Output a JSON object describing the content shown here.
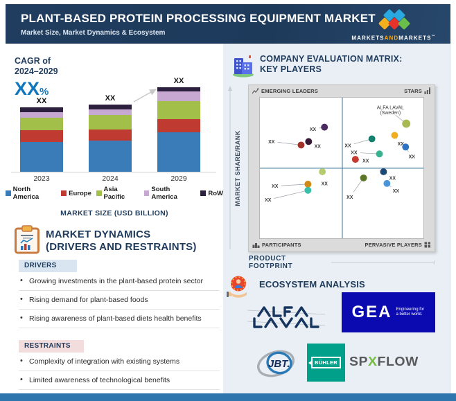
{
  "header": {
    "title": "PLANT-BASED PROTEIN PROCESSING EQUIPMENT MARKET",
    "subtitle": "Market Size, Market Dynamics & Ecosystem",
    "logo": {
      "part1": "MARKETS",
      "and": "AND",
      "part2": "MARKETS",
      "tm": "™"
    }
  },
  "cagr": {
    "line1": "CAGR of",
    "line2": "2024–2029",
    "value": "XX",
    "percent": "%"
  },
  "market_size_label": "MARKET SIZE (USD BILLION)",
  "chart_data": [
    {
      "type": "bar",
      "stacked": true,
      "title": "MARKET SIZE (USD BILLION)",
      "categories": [
        "2023",
        "2024",
        "2029"
      ],
      "series": [
        {
          "name": "North America",
          "color": "#3a7cb8",
          "values": [
            43,
            45,
            57
          ]
        },
        {
          "name": "Europe",
          "color": "#bf3b32",
          "values": [
            17,
            16,
            19
          ]
        },
        {
          "name": "Asia Pacific",
          "color": "#a2bf4a",
          "values": [
            18,
            21,
            26
          ]
        },
        {
          "name": "South America",
          "color": "#c7a8d3",
          "values": [
            8,
            8,
            14
          ]
        },
        {
          "name": "RoW",
          "color": "#2d1f3e",
          "values": [
            7,
            7,
            6
          ]
        }
      ],
      "value_labels": [
        "XX",
        "XX",
        "XX"
      ],
      "note": "actual values masked as XX in source; series values are proportional drawn heights",
      "growth_arrow": {
        "from_category": "2024",
        "to_category": "2029"
      },
      "legend_position": "bottom",
      "grid": false
    },
    {
      "type": "scatter",
      "title": "COMPANY EVALUATION MATRIX: KEY PLAYERS",
      "xlabel": "PRODUCT FOOTPRINT",
      "ylabel": "MARKET SHARE/RANK",
      "x_range": [
        0,
        100
      ],
      "y_range": [
        0,
        100
      ],
      "y_origin": "top",
      "divider_x": 50.4,
      "divider_y": 50.2,
      "points": [
        {
          "label": "XX",
          "x": 39.5,
          "y": 21.0,
          "lx": 32.4,
          "ly": 22.4,
          "color": "#4a2b5e"
        },
        {
          "label": "XX",
          "x": 29.8,
          "y": 31.2,
          "lx": 35.3,
          "ly": 34.6,
          "color": "#381935"
        },
        {
          "label": "XX",
          "x": 25.2,
          "y": 33.7,
          "lx": 7.1,
          "ly": 31.2,
          "color": "#a03028"
        },
        {
          "label": "XX",
          "x": 68.5,
          "y": 29.3,
          "lx": 53.8,
          "ly": 34.1,
          "color": "#177f6e"
        },
        {
          "label": "XX",
          "x": 82.4,
          "y": 26.8,
          "lx": 86.1,
          "ly": 32.7,
          "color": "#f0ad1e"
        },
        {
          "label": "XX",
          "x": 73.1,
          "y": 40.0,
          "lx": 57.6,
          "ly": 39.0,
          "color": "#36b28e"
        },
        {
          "label": "XX",
          "x": 58.4,
          "y": 43.9,
          "lx": 64.7,
          "ly": 44.9,
          "color": "#c23b2e"
        },
        {
          "label": "XX",
          "x": 89.1,
          "y": 35.1,
          "lx": 92.9,
          "ly": 42.0,
          "color": "#2f73c4"
        },
        {
          "label": "ALFA LAVAL|(Sweden)",
          "x": 89.5,
          "y": 18.5,
          "lx": 79.8,
          "ly": 9.5,
          "color": "#a8b953",
          "r": 6
        },
        {
          "label": "XX",
          "x": 38.2,
          "y": 52.7,
          "lx": 39.5,
          "ly": 61.0,
          "color": "#b4cc6e",
          "connector": false
        },
        {
          "label": "XX",
          "x": 29.4,
          "y": 61.5,
          "lx": 9.2,
          "ly": 62.9,
          "color": "#cf8b16"
        },
        {
          "label": "XX",
          "x": 29.4,
          "y": 65.9,
          "lx": 5.0,
          "ly": 72.7,
          "color": "#3bbfa9"
        },
        {
          "label": "XX",
          "x": 63.4,
          "y": 57.1,
          "lx": 55.0,
          "ly": 70.7,
          "color": "#5b7626"
        },
        {
          "label": "XX",
          "x": 75.6,
          "y": 52.7,
          "lx": 81.1,
          "ly": 57.1,
          "color": "#1d4a74"
        },
        {
          "label": "XX",
          "x": 77.7,
          "y": 61.0,
          "lx": 83.2,
          "ly": 66.3,
          "color": "#4c94d8"
        }
      ]
    }
  ],
  "dynamics": {
    "title1": "MARKET DYNAMICS",
    "title2": "(DRIVERS AND RESTRAINTS)",
    "drivers_label": "DRIVERS",
    "drivers": [
      "Growing investments in the plant-based protein sector",
      "Rising demand for plant-based foods",
      "Rising awareness of plant-based diets health benefits"
    ],
    "restraints_label": "RESTRAINTS",
    "restraints": [
      "Complexity of integration with existing systems",
      "Limited awareness of technological benefits"
    ]
  },
  "matrix": {
    "title1": "COMPANY EVALUATION MATRIX:",
    "title2": "KEY PLAYERS",
    "quadrant_tl": "EMERGING LEADERS",
    "quadrant_tr": "STARS",
    "quadrant_bl": "PARTICIPANTS",
    "quadrant_br": "PERVASIVE PLAYERS",
    "y_axis": "MARKET SHARE/RANK",
    "x_axis": "PRODUCT FOOTPRINT",
    "highlight_company": "ALFA LAVAL (Sweden)"
  },
  "ecosystem": {
    "title": "ECOSYSTEM ANALYSIS",
    "companies": [
      "ALFA LAVAL",
      "GEA",
      "JBT",
      "BÜHLER",
      "SPXFLOW"
    ],
    "logos": {
      "alfa_laval": "ALFA LAVAL",
      "gea": "GEA",
      "gea_tagline": "Engineering for a better world.",
      "jbt": "JBT.",
      "buhler": "BÜHLER",
      "spx_1": "SP",
      "spx_x": "X",
      "spx_2": "FLOW"
    }
  },
  "colors": {
    "header_bg": "#1f3b5c",
    "accent_blue": "#1077bd",
    "panel_bg": "#e9eff4",
    "footer_bar": "#2e75ad",
    "drivers_bg": "#d9e6f2",
    "restraints_bg": "#f3dcdc",
    "quadrant_divider": "#2e6c8f"
  }
}
